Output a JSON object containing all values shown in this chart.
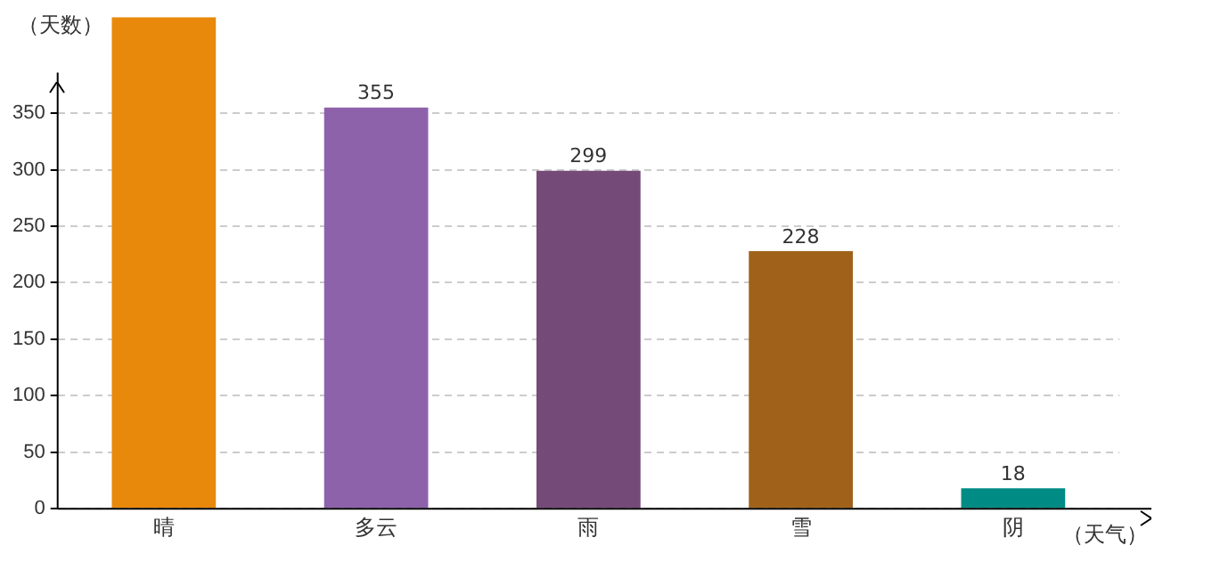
{
  "chart_data": {
    "type": "bar",
    "ylabel": "（天数）",
    "xlabel": "（天气）",
    "categories": [
      "晴",
      "多云",
      "雨",
      "雪",
      "阴"
    ],
    "values": [
      435,
      355,
      299,
      228,
      18
    ],
    "value_labels": [
      null,
      "355",
      "299",
      "228",
      "18"
    ],
    "colors": [
      "#e8890c",
      "#8e62ab",
      "#744b78",
      "#a0621a",
      "#008b84"
    ],
    "ylim": [
      0,
      435
    ],
    "yticks": [
      0,
      50,
      100,
      150,
      200,
      250,
      300,
      350
    ],
    "grid": "y",
    "legend": false
  }
}
